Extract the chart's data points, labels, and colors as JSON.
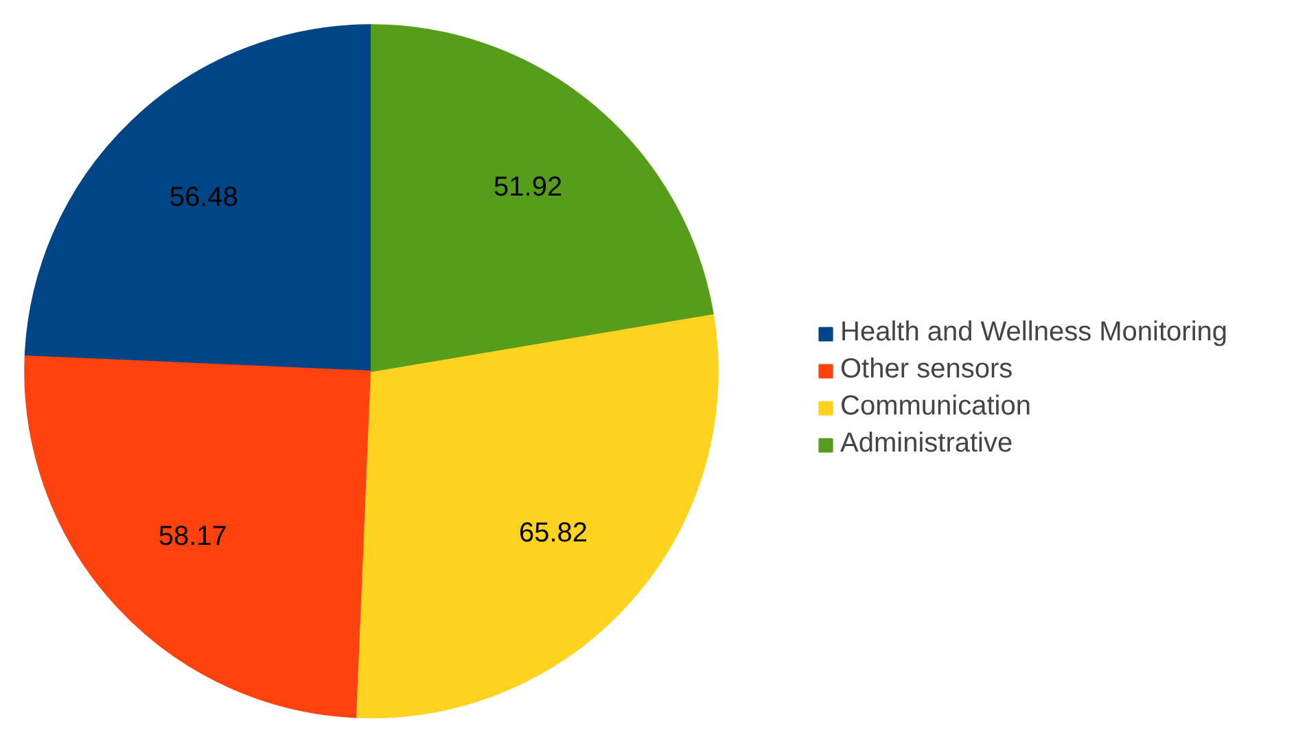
{
  "chart_data": {
    "type": "pie",
    "categories": [
      "Health and Wellness Monitoring",
      "Other sensors",
      "Communication",
      "Administrative"
    ],
    "values": [
      56.48,
      58.17,
      65.82,
      51.92
    ],
    "colors": [
      "#004586",
      "#ff420e",
      "#ffd320",
      "#579d1c"
    ],
    "data_labels": true,
    "legend": "right"
  }
}
